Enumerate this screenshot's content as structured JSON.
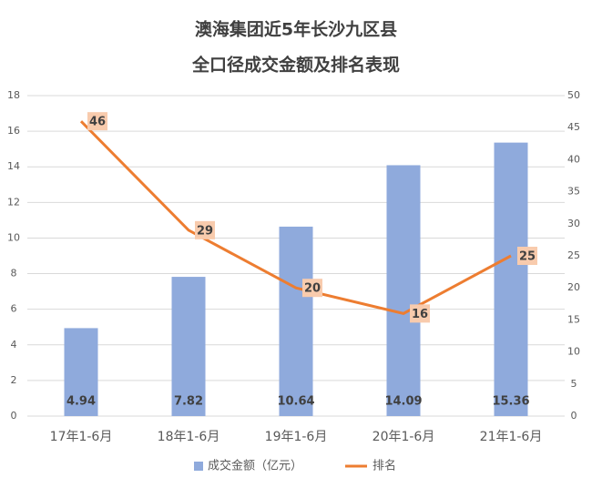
{
  "chart_data": {
    "type": "bar-line",
    "title": [
      "澳海集团近5年长沙九区县",
      "全口径成交金额及排名表现"
    ],
    "categories": [
      "17年1-6月",
      "18年1-6月",
      "19年1-6月",
      "20年1-6月",
      "21年1-6月"
    ],
    "series": [
      {
        "name": "成交金额（亿元）",
        "type": "bar",
        "color": "#8faadc",
        "values": [
          4.94,
          7.82,
          10.64,
          14.09,
          15.36
        ]
      },
      {
        "name": "排名",
        "type": "line",
        "axis": "y2",
        "color": "#ed7d31",
        "label_color": "#f8cbad",
        "values": [
          46,
          29,
          20,
          16,
          25
        ]
      }
    ],
    "ylim": [
      0,
      18
    ],
    "yticks": [
      0,
      2,
      4,
      6,
      8,
      10,
      12,
      14,
      16,
      18
    ],
    "y2lim": [
      0,
      50
    ],
    "y2ticks": [
      0,
      5,
      10,
      15,
      20,
      25,
      30,
      35,
      40,
      45,
      50
    ],
    "grid": true,
    "legend": "bottom"
  }
}
